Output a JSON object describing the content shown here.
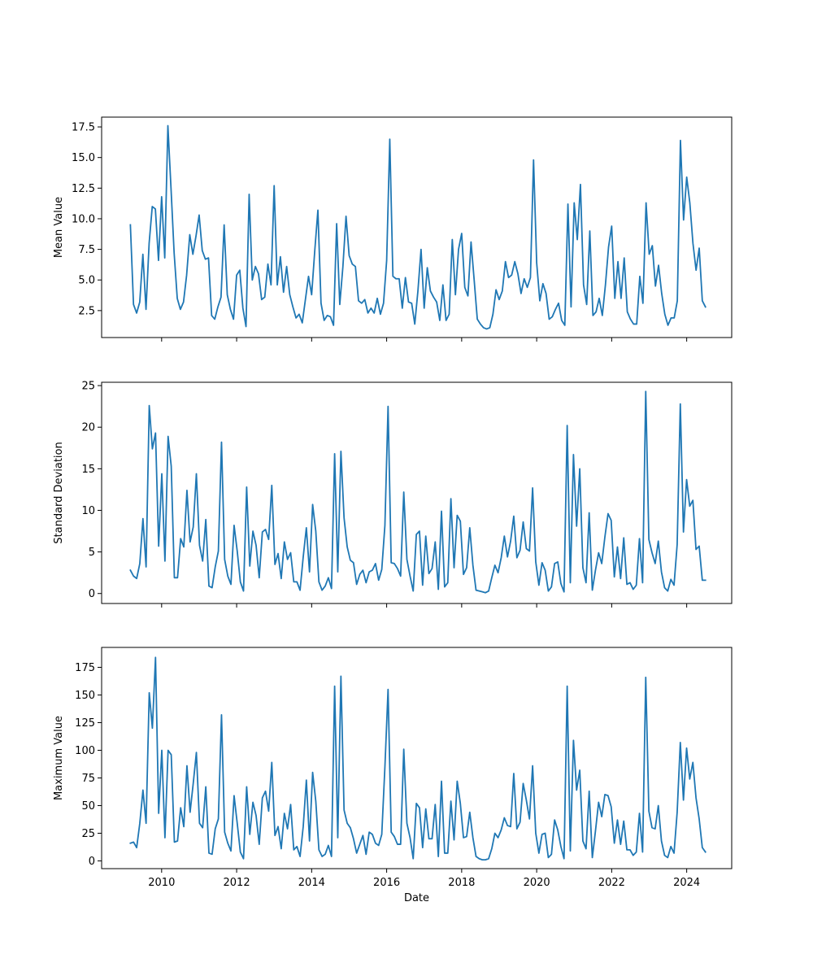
{
  "chart_data": [
    {
      "type": "line",
      "ylabel": "Mean Value",
      "xlabel": "",
      "ylim": [
        0.3,
        18.3
      ],
      "yticks": [
        2.5,
        5.0,
        7.5,
        10.0,
        12.5,
        15.0,
        17.5
      ],
      "ytick_labels": [
        "2.5",
        "5.0",
        "7.5",
        "10.0",
        "12.5",
        "15.0",
        "17.5"
      ],
      "xlim": [
        2008.4,
        2025.2
      ],
      "xticks": [
        2010,
        2012,
        2014,
        2016,
        2018,
        2020,
        2022,
        2024
      ],
      "xtick_labels": [],
      "color": "#1f77b4",
      "values": [
        9.5,
        3.0,
        2.3,
        3.2,
        7.1,
        2.6,
        8.0,
        11.0,
        10.8,
        6.6,
        11.8,
        6.8,
        17.6,
        12.5,
        7.2,
        3.5,
        2.6,
        3.2,
        5.4,
        8.7,
        7.1,
        8.6,
        10.3,
        7.4,
        6.7,
        6.8,
        2.1,
        1.8,
        2.8,
        3.6,
        9.5,
        3.8,
        2.6,
        1.8,
        5.4,
        5.8,
        2.7,
        1.2,
        12.0,
        5.0,
        6.1,
        5.5,
        3.4,
        3.6,
        6.3,
        4.6,
        12.7,
        4.6,
        6.9,
        4.0,
        6.1,
        3.8,
        2.8,
        1.9,
        2.2,
        1.5,
        3.4,
        5.3,
        3.8,
        7.4,
        10.7,
        3.1,
        1.7,
        2.1,
        2.0,
        1.3,
        9.6,
        3.0,
        6.1,
        10.2,
        7.0,
        6.3,
        6.1,
        3.3,
        3.1,
        3.4,
        2.3,
        2.7,
        2.3,
        3.5,
        2.2,
        3.1,
        6.6,
        16.5,
        5.3,
        5.1,
        5.1,
        2.7,
        5.2,
        3.2,
        3.1,
        1.4,
        4.1,
        7.5,
        2.7,
        6.0,
        4.1,
        3.6,
        3.2,
        1.7,
        4.6,
        1.7,
        2.2,
        8.3,
        3.8,
        7.5,
        8.8,
        4.4,
        3.7,
        8.1,
        5.0,
        1.8,
        1.4,
        1.1,
        1.0,
        1.1,
        2.2,
        4.2,
        3.4,
        4.1,
        6.5,
        5.2,
        5.4,
        6.5,
        5.5,
        3.9,
        5.1,
        4.4,
        5.2,
        14.8,
        6.4,
        3.3,
        4.7,
        3.9,
        1.8,
        2.0,
        2.6,
        3.1,
        1.7,
        1.3,
        11.2,
        2.8,
        11.3,
        8.3,
        12.8,
        4.6,
        3.0,
        9.0,
        2.1,
        2.4,
        3.5,
        2.1,
        4.6,
        7.7,
        9.4,
        3.5,
        6.5,
        3.5,
        6.8,
        2.4,
        1.8,
        1.4,
        1.4,
        5.3,
        3.1,
        11.3,
        7.1,
        7.8,
        4.5,
        6.2,
        3.9,
        2.2,
        1.3,
        1.9,
        1.9,
        3.3,
        16.4,
        9.9,
        13.4,
        11.3,
        8.0,
        5.8,
        7.6,
        3.3,
        2.8
      ]
    },
    {
      "type": "line",
      "ylabel": "Standard Deviation",
      "xlabel": "",
      "ylim": [
        -1.2,
        25.4
      ],
      "yticks": [
        0,
        5,
        10,
        15,
        20,
        25
      ],
      "ytick_labels": [
        "0",
        "5",
        "10",
        "15",
        "20",
        "25"
      ],
      "xlim": [
        2008.4,
        2025.2
      ],
      "xticks": [
        2010,
        2012,
        2014,
        2016,
        2018,
        2020,
        2022,
        2024
      ],
      "xtick_labels": [],
      "color": "#1f77b4",
      "values": [
        2.8,
        2.1,
        1.8,
        3.6,
        9.0,
        3.2,
        22.6,
        17.4,
        19.3,
        5.7,
        14.4,
        3.9,
        18.9,
        15.3,
        1.9,
        1.9,
        6.6,
        5.6,
        12.4,
        6.2,
        8.0,
        14.4,
        5.8,
        3.9,
        8.9,
        0.9,
        0.7,
        3.2,
        5.1,
        18.2,
        4.1,
        2.1,
        1.1,
        8.2,
        5.1,
        1.4,
        0.3,
        12.8,
        3.3,
        7.5,
        5.8,
        1.9,
        7.4,
        7.7,
        6.5,
        13.0,
        3.5,
        4.8,
        1.8,
        6.2,
        4.1,
        4.9,
        1.4,
        1.4,
        0.4,
        4.4,
        7.9,
        2.6,
        10.7,
        7.5,
        1.4,
        0.4,
        0.9,
        1.9,
        0.6,
        16.8,
        2.6,
        17.1,
        9.1,
        5.6,
        4.0,
        3.7,
        1.1,
        2.3,
        2.8,
        1.3,
        2.6,
        2.8,
        3.6,
        1.6,
        2.9,
        8.2,
        22.5,
        3.7,
        3.6,
        3.0,
        2.1,
        12.2,
        4.1,
        2.1,
        0.3,
        7.1,
        7.5,
        1.0,
        6.9,
        2.4,
        3.0,
        6.2,
        0.5,
        9.9,
        0.8,
        1.3,
        11.4,
        3.1,
        9.4,
        8.7,
        2.3,
        3.1,
        7.9,
        3.4,
        0.4,
        0.3,
        0.2,
        0.1,
        0.3,
        1.9,
        3.4,
        2.5,
        4.3,
        6.9,
        4.4,
        6.3,
        9.3,
        4.3,
        5.2,
        8.6,
        5.4,
        5.1,
        12.7,
        3.8,
        1.0,
        3.7,
        2.8,
        0.3,
        0.8,
        3.6,
        3.8,
        1.2,
        0.2,
        20.2,
        1.3,
        16.7,
        8.1,
        15.0,
        3.1,
        1.3,
        9.7,
        0.4,
        2.8,
        4.9,
        3.6,
        6.8,
        9.6,
        8.8,
        2.0,
        5.6,
        1.8,
        6.7,
        1.1,
        1.3,
        0.5,
        1.0,
        6.6,
        1.3,
        24.3,
        6.5,
        4.9,
        3.6,
        6.3,
        2.6,
        0.7,
        0.3,
        1.7,
        1.0,
        5.9,
        22.8,
        7.4,
        13.7,
        10.5,
        11.2,
        5.3,
        5.7,
        1.6,
        1.6
      ]
    },
    {
      "type": "line",
      "ylabel": "Maximum Value",
      "xlabel": "Date",
      "ylim": [
        -7.0,
        193.0
      ],
      "yticks": [
        0,
        25,
        50,
        75,
        100,
        125,
        150,
        175
      ],
      "ytick_labels": [
        "0",
        "25",
        "50",
        "75",
        "100",
        "125",
        "150",
        "175"
      ],
      "xlim": [
        2008.4,
        2025.2
      ],
      "xticks": [
        2010,
        2012,
        2014,
        2016,
        2018,
        2020,
        2022,
        2024
      ],
      "xtick_labels": [
        "2010",
        "2012",
        "2014",
        "2016",
        "2018",
        "2020",
        "2022",
        "2024"
      ],
      "color": "#1f77b4",
      "values": [
        16,
        17,
        12,
        34,
        64,
        34,
        152,
        120,
        184,
        43,
        100,
        21,
        100,
        96,
        17,
        18,
        48,
        31,
        86,
        44,
        70,
        98,
        34,
        30,
        67,
        7,
        6,
        29,
        38,
        132,
        26,
        16,
        9,
        59,
        34,
        8,
        2,
        67,
        24,
        53,
        41,
        15,
        57,
        63,
        45,
        89,
        23,
        31,
        11,
        43,
        29,
        51,
        10,
        13,
        4,
        31,
        73,
        18,
        80,
        54,
        10,
        4,
        6,
        14,
        4,
        158,
        21,
        167,
        46,
        34,
        30,
        20,
        7,
        15,
        23,
        6,
        26,
        24,
        16,
        14,
        24,
        85,
        155,
        26,
        22,
        15,
        15,
        101,
        34,
        21,
        2,
        52,
        48,
        12,
        47,
        20,
        20,
        51,
        4,
        72,
        7,
        7,
        54,
        19,
        72,
        52,
        21,
        22,
        44,
        21,
        4,
        2,
        1,
        1,
        2,
        11,
        25,
        21,
        28,
        39,
        32,
        31,
        79,
        29,
        35,
        70,
        55,
        38,
        86,
        25,
        7,
        24,
        25,
        3,
        6,
        37,
        28,
        13,
        2,
        158,
        9,
        109,
        64,
        82,
        18,
        11,
        63,
        3,
        27,
        53,
        40,
        60,
        59,
        49,
        16,
        37,
        15,
        36,
        10,
        10,
        5,
        8,
        43,
        8,
        166,
        45,
        30,
        29,
        50,
        18,
        5,
        3,
        13,
        7,
        44,
        107,
        55,
        102,
        74,
        89,
        57,
        38,
        12,
        8
      ]
    }
  ]
}
